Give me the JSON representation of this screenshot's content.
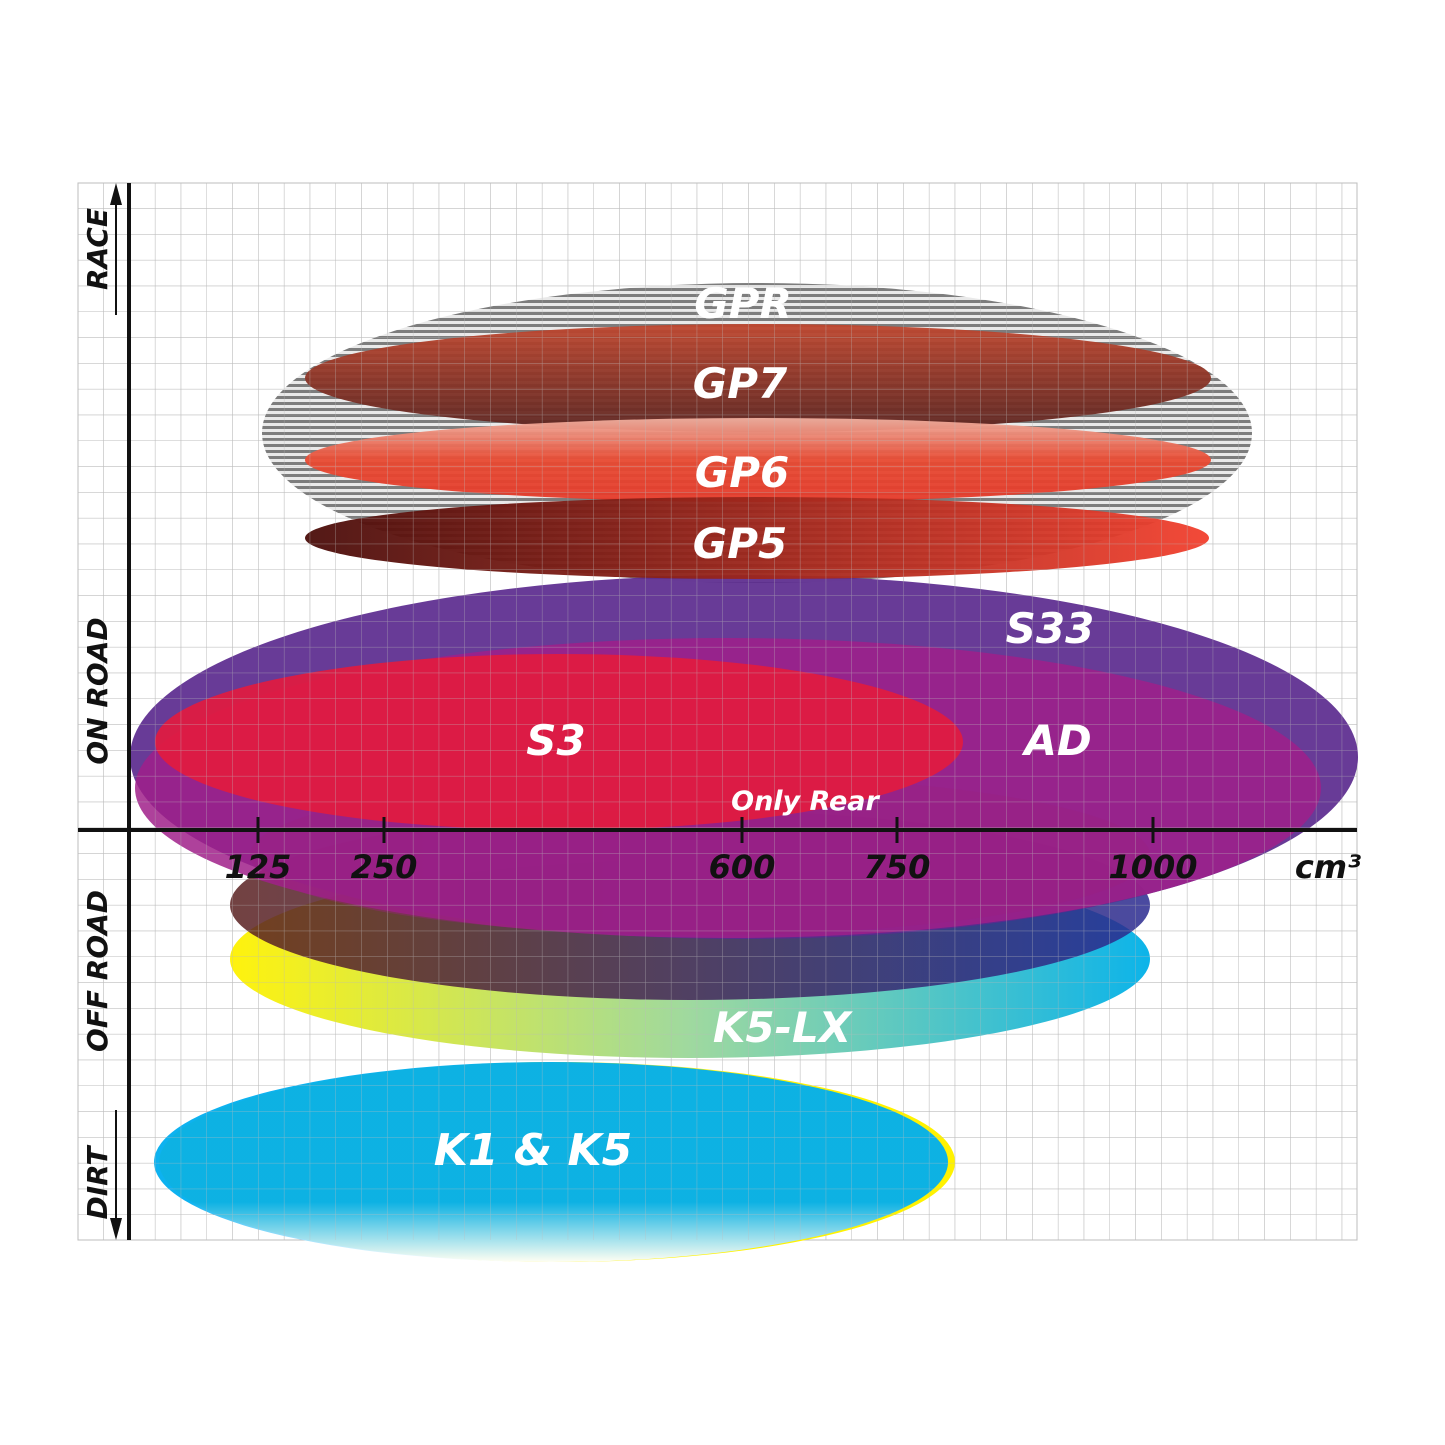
{
  "chart_data": {
    "type": "diagram",
    "x_axis": {
      "ticks": [
        "125",
        "250",
        "600",
        "750",
        "1000"
      ],
      "unit": "cm³"
    },
    "y_axis": {
      "categories": [
        "RACE",
        "ON ROAD",
        "OFF ROAD",
        "DIRT"
      ]
    },
    "grid": true,
    "products": [
      {
        "name": "GPR",
        "segment": "race",
        "color": "#9a9a9a"
      },
      {
        "name": "GP7",
        "segment": "race",
        "color": "#b5432f"
      },
      {
        "name": "GP6",
        "segment": "race",
        "color": "#e8412e"
      },
      {
        "name": "GP5",
        "segment": "race",
        "color": "#8a1a14"
      },
      {
        "name": "S33",
        "segment": "on road",
        "color": "#5b2a8e"
      },
      {
        "name": "S3",
        "segment": "on road",
        "color": "#a0208a"
      },
      {
        "name": "AD",
        "segment": "on road",
        "color": "#e21b3f"
      },
      {
        "name": "Only Rear",
        "segment": "on road",
        "color": "#a0208a"
      },
      {
        "name": "K5-LX",
        "segment": "off road",
        "color": "#20c0d0"
      },
      {
        "name": "K1 & K5",
        "segment": "dirt",
        "color": "#00aeef"
      }
    ]
  }
}
